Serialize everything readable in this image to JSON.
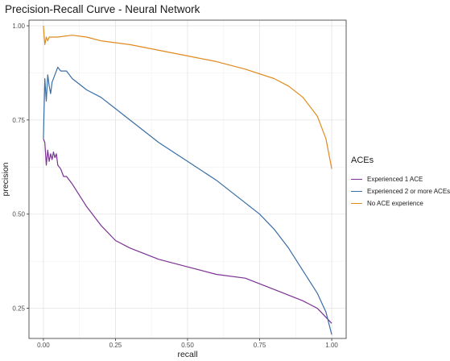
{
  "chart_data": {
    "type": "line",
    "title": "Precision-Recall Curve - Neural Network",
    "xlabel": "recall",
    "ylabel": "precision",
    "xlim": [
      -0.05,
      1.05
    ],
    "ylim": [
      0.17,
      1.015
    ],
    "x_ticks": [
      0.0,
      0.25,
      0.5,
      0.75,
      1.0
    ],
    "x_tick_labels": [
      "0.00",
      "0.25",
      "0.50",
      "0.75",
      "1.00"
    ],
    "y_ticks": [
      0.25,
      0.5,
      0.75,
      1.0
    ],
    "y_tick_labels": [
      "0.25",
      "0.50",
      "0.75",
      "1.00"
    ],
    "grid": true,
    "legend_title": "ACEs",
    "legend_position": "right",
    "series": [
      {
        "name": "Experienced 1 ACE",
        "color": "#7B3294",
        "points": [
          [
            0.0,
            0.7
          ],
          [
            0.005,
            0.69
          ],
          [
            0.01,
            0.63
          ],
          [
            0.015,
            0.67
          ],
          [
            0.02,
            0.64
          ],
          [
            0.025,
            0.66
          ],
          [
            0.03,
            0.645
          ],
          [
            0.035,
            0.665
          ],
          [
            0.04,
            0.65
          ],
          [
            0.045,
            0.66
          ],
          [
            0.05,
            0.63
          ],
          [
            0.06,
            0.62
          ],
          [
            0.07,
            0.6
          ],
          [
            0.08,
            0.6
          ],
          [
            0.1,
            0.58
          ],
          [
            0.15,
            0.52
          ],
          [
            0.2,
            0.47
          ],
          [
            0.25,
            0.43
          ],
          [
            0.3,
            0.41
          ],
          [
            0.4,
            0.38
          ],
          [
            0.5,
            0.36
          ],
          [
            0.6,
            0.34
          ],
          [
            0.7,
            0.33
          ],
          [
            0.8,
            0.3
          ],
          [
            0.9,
            0.27
          ],
          [
            0.95,
            0.25
          ],
          [
            1.0,
            0.21
          ]
        ]
      },
      {
        "name": "Experienced 2 or more ACEs",
        "color": "#3A6EA5",
        "points": [
          [
            0.0,
            0.7
          ],
          [
            0.005,
            0.86
          ],
          [
            0.01,
            0.8
          ],
          [
            0.015,
            0.87
          ],
          [
            0.02,
            0.84
          ],
          [
            0.025,
            0.82
          ],
          [
            0.03,
            0.85
          ],
          [
            0.04,
            0.87
          ],
          [
            0.05,
            0.89
          ],
          [
            0.06,
            0.88
          ],
          [
            0.08,
            0.88
          ],
          [
            0.1,
            0.86
          ],
          [
            0.15,
            0.83
          ],
          [
            0.2,
            0.81
          ],
          [
            0.25,
            0.78
          ],
          [
            0.3,
            0.75
          ],
          [
            0.4,
            0.69
          ],
          [
            0.5,
            0.64
          ],
          [
            0.6,
            0.59
          ],
          [
            0.7,
            0.53
          ],
          [
            0.75,
            0.5
          ],
          [
            0.8,
            0.46
          ],
          [
            0.85,
            0.41
          ],
          [
            0.9,
            0.35
          ],
          [
            0.95,
            0.29
          ],
          [
            0.98,
            0.24
          ],
          [
            1.0,
            0.18
          ]
        ]
      },
      {
        "name": "No ACE experience",
        "color": "#E08A1E",
        "points": [
          [
            0.0,
            1.0
          ],
          [
            0.005,
            0.95
          ],
          [
            0.01,
            0.97
          ],
          [
            0.015,
            0.96
          ],
          [
            0.02,
            0.97
          ],
          [
            0.05,
            0.97
          ],
          [
            0.1,
            0.975
          ],
          [
            0.15,
            0.97
          ],
          [
            0.2,
            0.96
          ],
          [
            0.3,
            0.95
          ],
          [
            0.4,
            0.935
          ],
          [
            0.5,
            0.92
          ],
          [
            0.6,
            0.905
          ],
          [
            0.7,
            0.885
          ],
          [
            0.8,
            0.86
          ],
          [
            0.85,
            0.84
          ],
          [
            0.9,
            0.81
          ],
          [
            0.95,
            0.76
          ],
          [
            0.98,
            0.7
          ],
          [
            1.0,
            0.62
          ]
        ]
      }
    ]
  }
}
